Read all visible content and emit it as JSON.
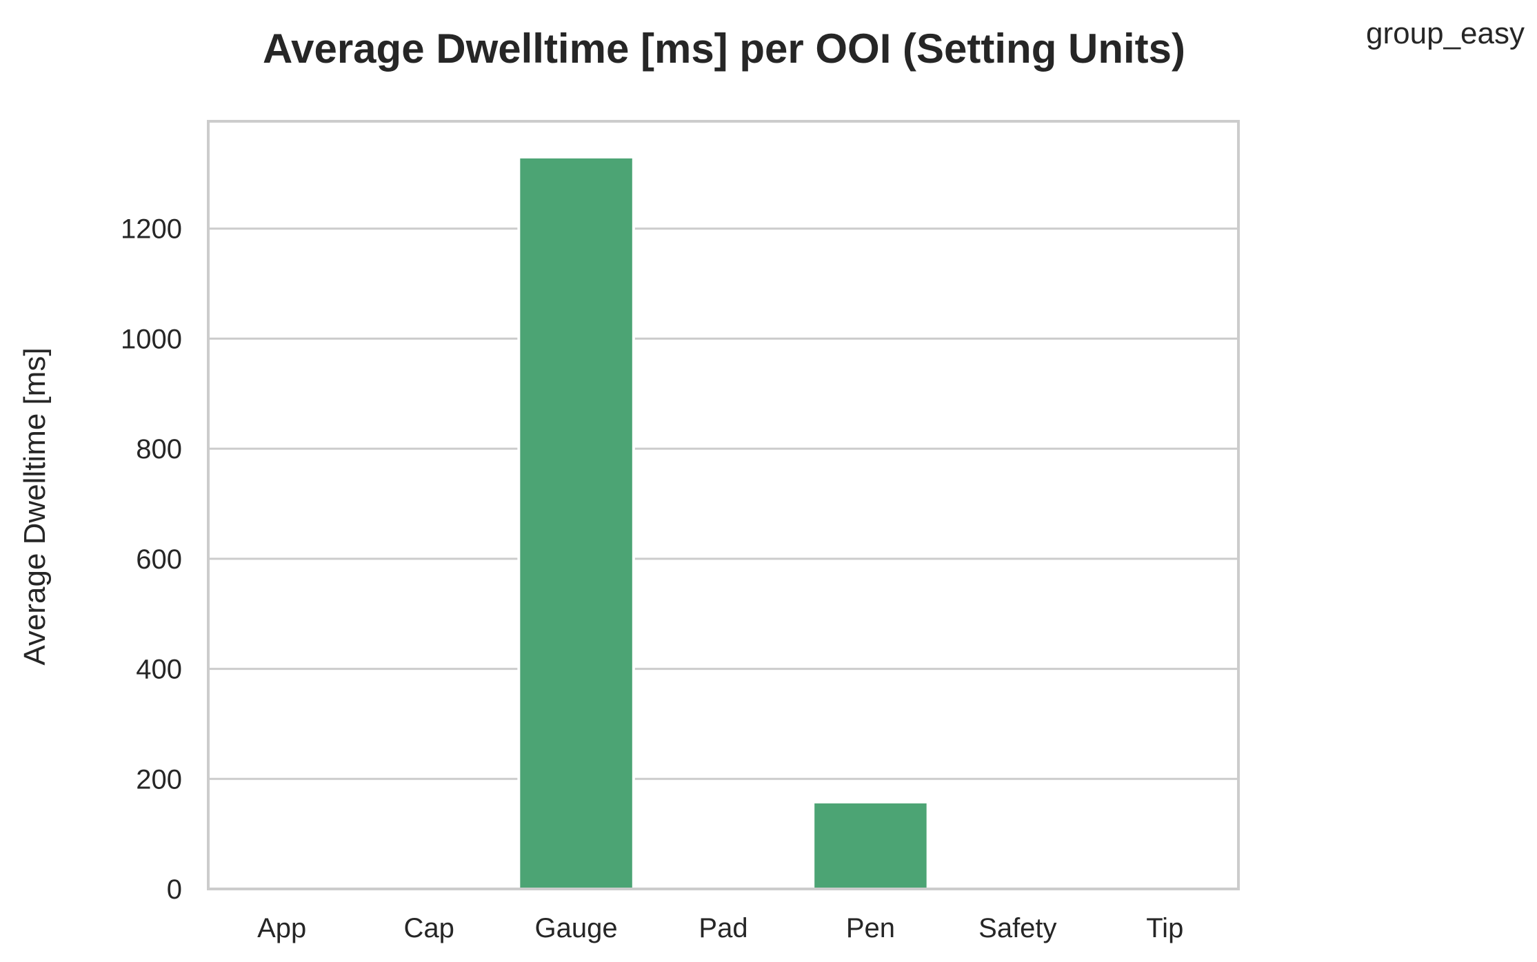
{
  "chart_data": {
    "type": "bar",
    "title": "Average Dwelltime [ms] per OOI (Setting Units)",
    "legend_title": "group_easy",
    "legend_placement": "top-right",
    "xlabel": "",
    "ylabel": "Average Dwelltime [ms]",
    "categories": [
      "App",
      "Cap",
      "Gauge",
      "Pad",
      "Pen",
      "Safety",
      "Tip"
    ],
    "values": [
      0,
      0,
      1330,
      0,
      158,
      0,
      0
    ],
    "yticks": [
      "0",
      "200",
      "400",
      "600",
      "800",
      "1000",
      "1200"
    ],
    "ylim": [
      0,
      1395
    ],
    "grid": true,
    "colors": {
      "bar": "#4ca474",
      "grid": "#cccccc",
      "frame": "#cccccc",
      "text": "#262626"
    }
  }
}
